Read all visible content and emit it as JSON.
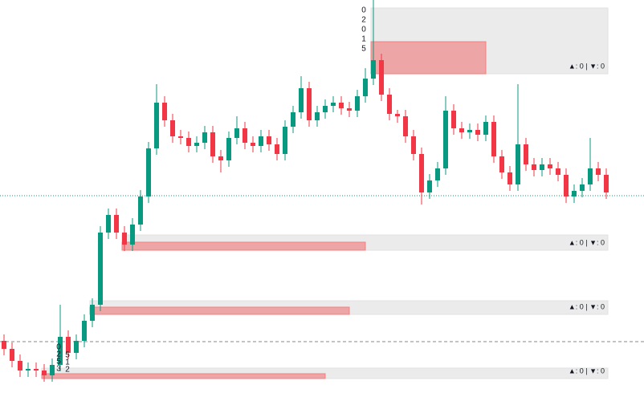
{
  "chart_data": {
    "type": "candlestick",
    "up_color": "#089981",
    "down_color": "#f23645",
    "ylim": [
      0,
      505
    ],
    "open": [
      80,
      70,
      55,
      43,
      45,
      43,
      37,
      50,
      85,
      65,
      80,
      105,
      125,
      215,
      237,
      215,
      200,
      225,
      260,
      320,
      377,
      355,
      335,
      333,
      323,
      327,
      340,
      310,
      305,
      333,
      345,
      327,
      323,
      335,
      325,
      313,
      347,
      365,
      395,
      355,
      365,
      373,
      377,
      370,
      367,
      385,
      407,
      430,
      387,
      363,
      360,
      335,
      313,
      265,
      280,
      295,
      367,
      345,
      340,
      343,
      337,
      353,
      310,
      290,
      275,
      325,
      300,
      293,
      300,
      295,
      287,
      260,
      267,
      275,
      295,
      287
    ],
    "high": [
      88,
      78,
      63,
      53,
      53,
      51,
      58,
      125,
      93,
      88,
      113,
      133,
      223,
      245,
      245,
      223,
      233,
      268,
      328,
      400,
      385,
      363,
      343,
      341,
      335,
      348,
      348,
      318,
      341,
      360,
      353,
      335,
      343,
      343,
      333,
      355,
      373,
      410,
      403,
      373,
      381,
      385,
      385,
      378,
      393,
      420,
      505,
      438,
      395,
      368,
      368,
      343,
      321,
      288,
      303,
      385,
      375,
      353,
      351,
      351,
      361,
      361,
      318,
      298,
      400,
      333,
      308,
      308,
      308,
      303,
      295,
      275,
      283,
      333,
      303,
      295
    ],
    "low": [
      62,
      47,
      35,
      35,
      35,
      29,
      29,
      42,
      57,
      57,
      72,
      97,
      117,
      207,
      207,
      192,
      192,
      217,
      252,
      312,
      347,
      327,
      325,
      315,
      315,
      319,
      302,
      290,
      297,
      325,
      319,
      315,
      315,
      317,
      305,
      305,
      339,
      357,
      347,
      347,
      357,
      365,
      362,
      359,
      359,
      377,
      399,
      379,
      355,
      352,
      327,
      305,
      250,
      257,
      272,
      287,
      337,
      332,
      332,
      329,
      329,
      302,
      282,
      267,
      267,
      292,
      285,
      285,
      287,
      279,
      252,
      252,
      259,
      267,
      279,
      257
    ],
    "close": [
      70,
      55,
      43,
      45,
      43,
      37,
      50,
      85,
      65,
      80,
      105,
      125,
      215,
      237,
      215,
      200,
      225,
      260,
      320,
      377,
      355,
      335,
      333,
      323,
      327,
      340,
      310,
      305,
      333,
      345,
      327,
      323,
      335,
      325,
      313,
      347,
      365,
      395,
      355,
      365,
      373,
      377,
      370,
      367,
      385,
      407,
      430,
      387,
      363,
      360,
      335,
      313,
      265,
      280,
      295,
      367,
      345,
      340,
      343,
      337,
      353,
      310,
      290,
      275,
      325,
      300,
      293,
      300,
      295,
      287,
      260,
      267,
      275,
      295,
      287,
      265
    ],
    "zones": [
      {
        "start": 46,
        "top": 495,
        "bottom": 413,
        "fill_end": 60,
        "fill_top": 453,
        "fill_bottom": 413,
        "label": "▲: 0 | ▼: 0"
      },
      {
        "start": 15,
        "top": 212,
        "bottom": 193,
        "fill_end": 45,
        "fill_top": 203,
        "fill_bottom": 193,
        "label": "▲: 0 | ▼: 0"
      },
      {
        "start": 11,
        "top": 130,
        "bottom": 113,
        "fill_end": 43,
        "fill_top": 122,
        "fill_bottom": 113,
        "label": "▲: 0 | ▼: 0"
      },
      {
        "start": 5,
        "top": 46,
        "bottom": 33,
        "fill_end": 40,
        "fill_top": 39,
        "fill_bottom": 33,
        "label": "▲: 0 | ▼: 0"
      }
    ],
    "price_lines": [
      {
        "value": 261,
        "color": "#089981",
        "style": "dotted"
      },
      {
        "value": 79,
        "color": "#888888",
        "style": "dashed"
      }
    ],
    "annotations": [
      [
        "0",
        "2",
        "0",
        "1",
        "5"
      ],
      [
        "0",
        "2",
        "5",
        "3"
      ],
      [
        "5",
        "1",
        "2"
      ]
    ]
  }
}
